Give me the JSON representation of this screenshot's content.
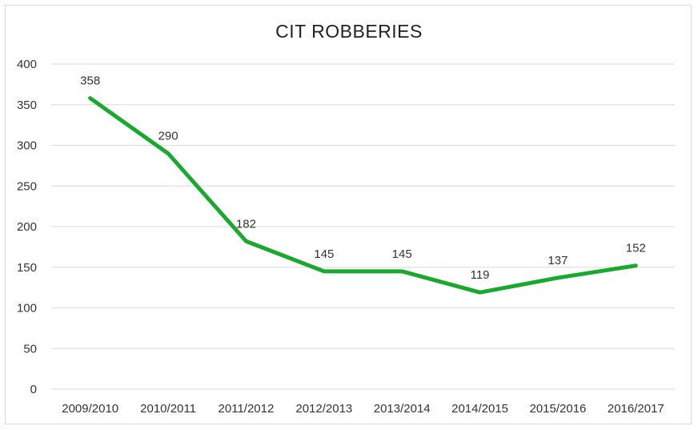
{
  "chart_data": {
    "type": "line",
    "title": "CIT ROBBERIES",
    "xlabel": "",
    "ylabel": "",
    "categories": [
      "2009/2010",
      "2010/2011",
      "2011/2012",
      "2012/2013",
      "2013/2014",
      "2014/2015",
      "2015/2016",
      "2016/2017"
    ],
    "series": [
      {
        "values": [
          358,
          290,
          182,
          145,
          145,
          119,
          137,
          152
        ]
      }
    ],
    "ylim": [
      0,
      400
    ],
    "yticks": [
      0,
      50,
      100,
      150,
      200,
      250,
      300,
      350,
      400
    ],
    "grid": true,
    "legend": "none",
    "data_labels": true,
    "line_color": "#1aa830",
    "grid_color": "#d9d9d9"
  }
}
